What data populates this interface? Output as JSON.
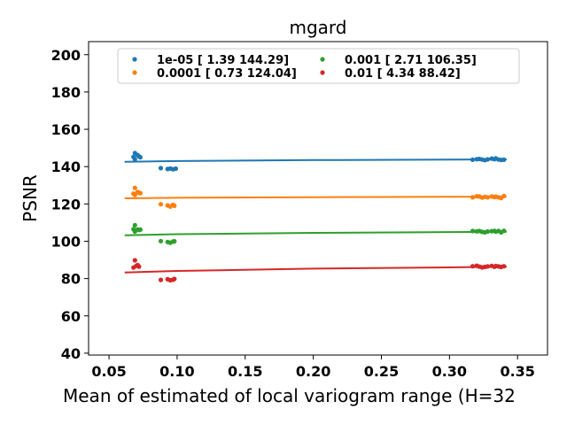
{
  "chart_data": {
    "type": "scatter",
    "title": "mgard",
    "xlabel": "Mean of estimated of local variogram range (H=32",
    "ylabel": "PSNR",
    "xlim": [
      0.035,
      0.372
    ],
    "ylim": [
      39,
      207
    ],
    "xticks": [
      0.05,
      0.1,
      0.15,
      0.2,
      0.25,
      0.3,
      0.35
    ],
    "xtick_labels": [
      "0.05",
      "0.10",
      "0.15",
      "0.20",
      "0.25",
      "0.30",
      "0.35"
    ],
    "yticks": [
      40,
      60,
      80,
      100,
      120,
      140,
      160,
      180,
      200
    ],
    "ytick_labels": [
      "40",
      "60",
      "80",
      "100",
      "120",
      "140",
      "160",
      "180",
      "200"
    ],
    "grid": false,
    "legend_position": "top",
    "fit_x_range": [
      0.0615,
      0.342
    ],
    "series": [
      {
        "name": "1e-05 [  1.39 144.29]",
        "color": "#1f77b4",
        "points": [
          [
            0.068,
            145.2
          ],
          [
            0.069,
            147.3
          ],
          [
            0.069,
            144.0
          ],
          [
            0.071,
            146.2
          ],
          [
            0.072,
            145.5
          ],
          [
            0.073,
            145.0
          ],
          [
            0.088,
            139.2
          ],
          [
            0.093,
            138.7
          ],
          [
            0.095,
            139.0
          ],
          [
            0.097,
            138.6
          ],
          [
            0.099,
            138.9
          ],
          [
            0.317,
            143.7
          ],
          [
            0.32,
            144.0
          ],
          [
            0.322,
            144.1
          ],
          [
            0.324,
            143.8
          ],
          [
            0.326,
            143.5
          ],
          [
            0.328,
            143.9
          ],
          [
            0.331,
            144.3
          ],
          [
            0.333,
            144.0
          ],
          [
            0.334,
            144.4
          ],
          [
            0.336,
            143.8
          ],
          [
            0.338,
            143.6
          ],
          [
            0.34,
            143.7
          ]
        ],
        "fit": {
          "x": [
            0.0615,
            0.1,
            0.2,
            0.3,
            0.342
          ],
          "y": [
            142.6,
            143.0,
            143.5,
            143.8,
            143.9
          ]
        }
      },
      {
        "name": "0.0001 [  0.73 124.04]",
        "color": "#ff7f0e",
        "points": [
          [
            0.068,
            125.5
          ],
          [
            0.069,
            128.6
          ],
          [
            0.069,
            124.8
          ],
          [
            0.071,
            126.4
          ],
          [
            0.072,
            126.0
          ],
          [
            0.073,
            125.8
          ],
          [
            0.088,
            119.8
          ],
          [
            0.093,
            119.2
          ],
          [
            0.095,
            118.6
          ],
          [
            0.097,
            119.5
          ],
          [
            0.098,
            119.0
          ],
          [
            0.317,
            123.5
          ],
          [
            0.32,
            124.1
          ],
          [
            0.322,
            124.0
          ],
          [
            0.324,
            123.4
          ],
          [
            0.326,
            123.8
          ],
          [
            0.328,
            123.5
          ],
          [
            0.331,
            124.0
          ],
          [
            0.333,
            123.6
          ],
          [
            0.334,
            123.9
          ],
          [
            0.336,
            123.5
          ],
          [
            0.338,
            123.2
          ],
          [
            0.34,
            124.3
          ]
        ],
        "fit": {
          "x": [
            0.0615,
            0.1,
            0.2,
            0.3,
            0.342
          ],
          "y": [
            123.0,
            123.3,
            123.6,
            123.8,
            123.9
          ]
        }
      },
      {
        "name": "0.001 [  2.71 106.35]",
        "color": "#2ca02c",
        "points": [
          [
            0.068,
            106.5
          ],
          [
            0.069,
            108.6
          ],
          [
            0.069,
            105.2
          ],
          [
            0.071,
            106.3
          ],
          [
            0.072,
            106.0
          ],
          [
            0.073,
            106.2
          ],
          [
            0.088,
            100.1
          ],
          [
            0.093,
            99.6
          ],
          [
            0.095,
            99.2
          ],
          [
            0.097,
            99.8
          ],
          [
            0.098,
            100.0
          ],
          [
            0.317,
            105.5
          ],
          [
            0.32,
            105.3
          ],
          [
            0.322,
            105.5
          ],
          [
            0.324,
            105.0
          ],
          [
            0.326,
            104.8
          ],
          [
            0.328,
            105.2
          ],
          [
            0.331,
            105.4
          ],
          [
            0.333,
            105.6
          ],
          [
            0.334,
            105.1
          ],
          [
            0.336,
            105.5
          ],
          [
            0.338,
            104.8
          ],
          [
            0.34,
            105.6
          ]
        ],
        "fit": {
          "x": [
            0.0615,
            0.1,
            0.2,
            0.3,
            0.342
          ],
          "y": [
            103.2,
            103.8,
            104.5,
            104.9,
            105.1
          ]
        }
      },
      {
        "name": "0.01 [ 4.34 88.42]",
        "color": "#d62728",
        "points": [
          [
            0.068,
            85.9
          ],
          [
            0.069,
            89.8
          ],
          [
            0.07,
            86.8
          ],
          [
            0.071,
            87.2
          ],
          [
            0.072,
            86.4
          ],
          [
            0.088,
            79.3
          ],
          [
            0.093,
            79.6
          ],
          [
            0.095,
            79.1
          ],
          [
            0.097,
            79.4
          ],
          [
            0.098,
            79.8
          ],
          [
            0.317,
            86.6
          ],
          [
            0.32,
            86.9
          ],
          [
            0.322,
            86.4
          ],
          [
            0.324,
            86.0
          ],
          [
            0.326,
            86.2
          ],
          [
            0.328,
            86.5
          ],
          [
            0.331,
            86.8
          ],
          [
            0.333,
            86.3
          ],
          [
            0.334,
            86.7
          ],
          [
            0.336,
            86.5
          ],
          [
            0.338,
            86.2
          ],
          [
            0.34,
            86.6
          ]
        ],
        "fit": {
          "x": [
            0.0615,
            0.1,
            0.2,
            0.3,
            0.342
          ],
          "y": [
            83.3,
            84.1,
            85.3,
            86.0,
            86.4
          ]
        }
      }
    ]
  }
}
